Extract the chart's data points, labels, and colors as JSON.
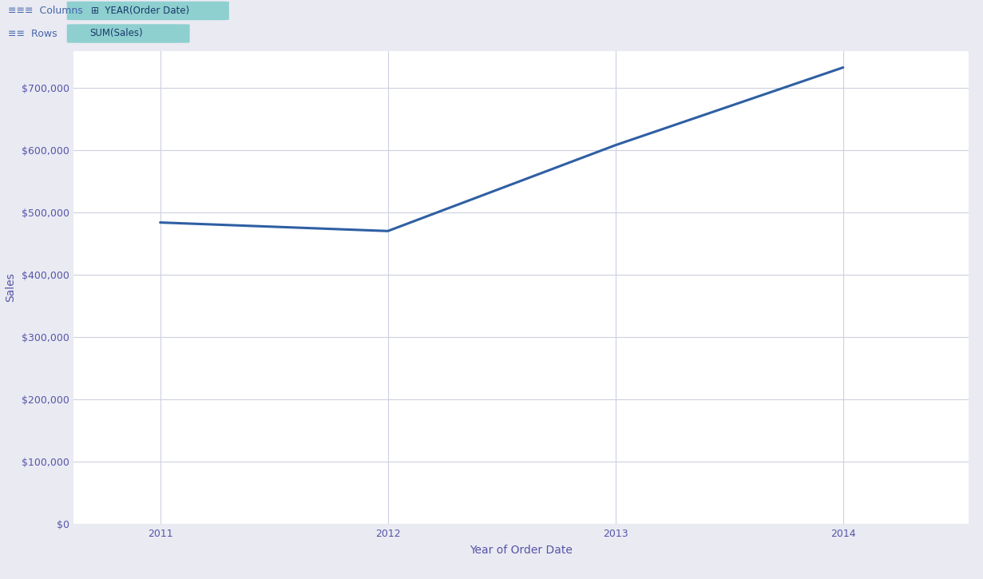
{
  "years": [
    2011,
    2012,
    2013,
    2014
  ],
  "sales": [
    484247,
    470533,
    608473,
    733215
  ],
  "line_color": "#2e5fa3",
  "line_width": 2.2,
  "bg_color": "#eaeaf2",
  "plot_bg_color": "#ffffff",
  "grid_color": "#cdd0e0",
  "tick_color": "#5555aa",
  "label_color": "#5555aa",
  "xlabel": "Year of Order Date",
  "ylabel": "Sales",
  "ylim": [
    0,
    760000
  ],
  "yticks": [
    0,
    100000,
    200000,
    300000,
    400000,
    500000,
    600000,
    700000
  ],
  "col_pill_bg": "#8ecfcf",
  "row_pill_bg": "#8ecfcf",
  "col_text": "YEAR(Order Date)",
  "row_text": "SUM(Sales)",
  "header_bg": "#eaeaf2",
  "header_separator": "#c8ccd8",
  "col_icon_color": "#4466aa",
  "row_icon_color": "#4466aa",
  "header_text_color": "#4466aa"
}
